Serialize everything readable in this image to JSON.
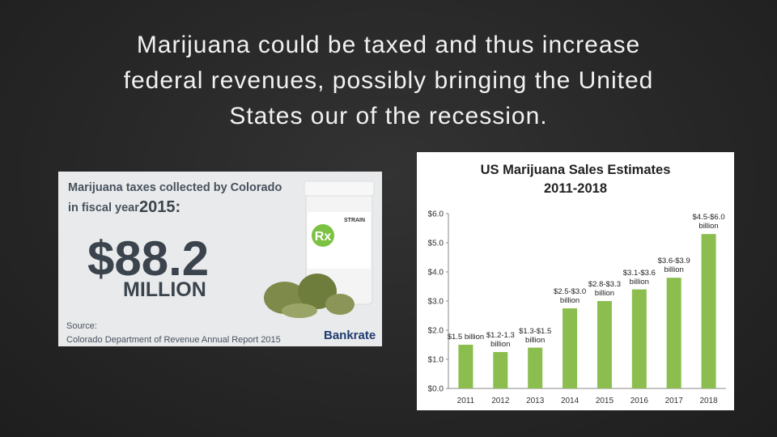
{
  "slide": {
    "title_lines": [
      "Marijuana could be taxed and thus increase",
      "federal revenues, possibly bringing the United",
      "States our of the recession."
    ]
  },
  "infographic": {
    "heading_line1": "Marijuana taxes collected by Colorado",
    "heading_line2": "in fiscal year",
    "year": "2015:",
    "amount": "$88.2",
    "unit": "MILLION",
    "bottle_label": "STRAIN",
    "rx": "Rx",
    "source_label": "Source:",
    "source": "Colorado Department of Revenue Annual Report 2015",
    "brand": "Bankrate"
  },
  "chart_data": {
    "type": "bar",
    "title": "US Marijuana Sales Estimates",
    "subtitle": "2011-2018",
    "categories": [
      "2011",
      "2012",
      "2013",
      "2014",
      "2015",
      "2016",
      "2017",
      "2018"
    ],
    "values": [
      1.5,
      1.25,
      1.4,
      2.75,
      3.0,
      3.4,
      3.8,
      5.3
    ],
    "value_labels": [
      "$1.5 billion",
      "$1.2-1.3 billion",
      "$1.3-$1.5 billion",
      "$2.5-$3.0 billion",
      "$2.8-$3.3 billion",
      "$3.1-$3.6 billion",
      "$3.6-$3.9 billion",
      "$4.5-$6.0 billion"
    ],
    "color": "#8cbd4f",
    "ylim": [
      0,
      6
    ],
    "yticks": [
      {
        "value": 0,
        "label": "$0.0"
      },
      {
        "value": 1,
        "label": "$1.0"
      },
      {
        "value": 2,
        "label": "$2.0"
      },
      {
        "value": 3,
        "label": "$3.0"
      },
      {
        "value": 4,
        "label": "$4.0"
      },
      {
        "value": 5,
        "label": "$5.0"
      },
      {
        "value": 6,
        "label": "$6.0"
      }
    ],
    "grid": false
  }
}
